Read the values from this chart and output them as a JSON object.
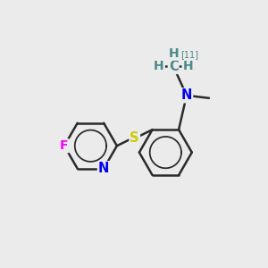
{
  "background_color": "#ebebeb",
  "atom_colors": {
    "C": "#000000",
    "N": "#0000ee",
    "S": "#cccc00",
    "F": "#ff00ff",
    "H": "#4a8a8a",
    "C11": "#4a8a8a"
  },
  "bond_color": "#2a2a2a",
  "bond_width": 1.8,
  "figsize": [
    3.0,
    3.0
  ],
  "dpi": 100
}
